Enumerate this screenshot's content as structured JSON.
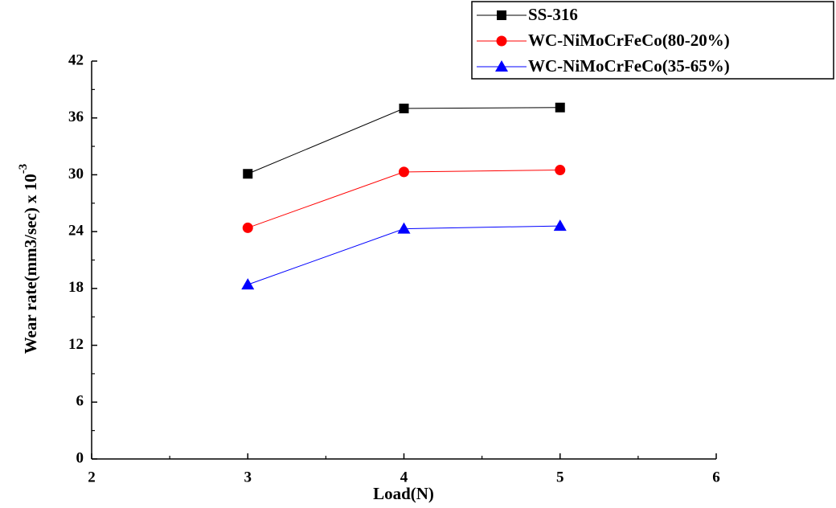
{
  "chart_data": {
    "type": "line",
    "xlabel": "Load(N)",
    "ylabel": "Wear rate(mm3/sec) x 10",
    "ylabel_exponent": "-3",
    "x": [
      3,
      4,
      5
    ],
    "series": [
      {
        "name": "SS-316",
        "color": "#000000",
        "marker": "square",
        "values": [
          30.1,
          37.0,
          37.1
        ]
      },
      {
        "name": "WC-NiMoCrFeCo(80-20%)",
        "color": "#ff0000",
        "marker": "circle",
        "values": [
          24.4,
          30.3,
          30.5
        ]
      },
      {
        "name": "WC-NiMoCrFeCo(35-65%)",
        "color": "#0000ff",
        "marker": "triangle",
        "values": [
          18.4,
          24.3,
          24.6
        ]
      }
    ],
    "xlim": [
      2,
      6
    ],
    "xticks": [
      2,
      3,
      4,
      5,
      6
    ],
    "ylim": [
      0,
      42
    ],
    "yticks": [
      0,
      6,
      12,
      18,
      24,
      30,
      36,
      42
    ],
    "grid": false,
    "legend": "upper right"
  }
}
